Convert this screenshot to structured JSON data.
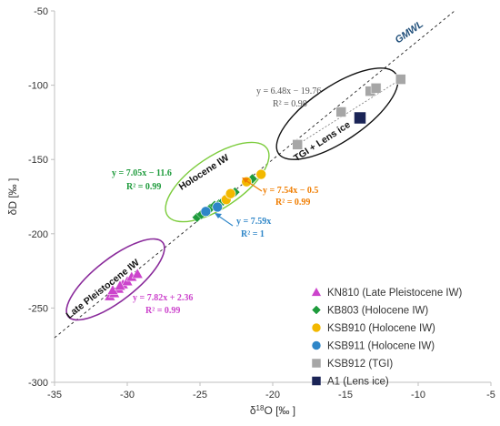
{
  "chart_data": {
    "type": "scatter",
    "xlabel": "δ18O [‰ ]",
    "ylabel": "δD [‰ ]",
    "xlim": [
      -35,
      -5
    ],
    "ylim": [
      -300,
      -50
    ],
    "xticks": [
      -35,
      -30,
      -25,
      -20,
      -15,
      -10,
      -5
    ],
    "yticks": [
      -300,
      -250,
      -200,
      -150,
      -100,
      -50
    ],
    "grid": false,
    "legend_position": "bottom-right",
    "series": [
      {
        "name": "KN810 (Late Pleistocene IW)",
        "marker": "triangle",
        "color": "#cc44cc",
        "x": [
          -31.2,
          -30.9,
          -30.6,
          -30.3,
          -30.0,
          -29.7,
          -29.3,
          -31.0,
          -30.5
        ],
        "y": [
          -242,
          -240,
          -237,
          -234,
          -232,
          -229,
          -227,
          -238,
          -235
        ]
      },
      {
        "name": "KB803 (Holocene IW)",
        "marker": "diamond",
        "color": "#1e9b3c",
        "x": [
          -25.2,
          -24.9,
          -24.6,
          -24.3,
          -24.0,
          -23.7,
          -23.4,
          -23.1,
          -22.6,
          -21.4
        ],
        "y": [
          -189,
          -187,
          -185,
          -183,
          -181,
          -180,
          -178,
          -175,
          -172,
          -163
        ]
      },
      {
        "name": "KSB910 (Holocene IW)",
        "marker": "circle",
        "color": "#f2b800",
        "x": [
          -23.2,
          -22.9,
          -21.8,
          -20.8
        ],
        "y": [
          -177,
          -173,
          -165,
          -160
        ]
      },
      {
        "name": "KSB911 (Holocene IW)",
        "marker": "circle",
        "color": "#2e86c8",
        "x": [
          -24.6,
          -23.8
        ],
        "y": [
          -185,
          -182
        ]
      },
      {
        "name": "KSB912 (TGI)",
        "marker": "square",
        "color": "#a6a6a6",
        "x": [
          -18.3,
          -15.3,
          -13.3,
          -12.9,
          -11.2
        ],
        "y": [
          -140,
          -118,
          -104,
          -102,
          -96
        ]
      },
      {
        "name": "A1 (Lens ice)",
        "marker": "square",
        "color": "#1a2456",
        "x": [
          -14.0
        ],
        "y": [
          -122
        ]
      }
    ],
    "reference_line": {
      "name": "GMWL",
      "slope": 8,
      "intercept": 10
    },
    "annotations": {
      "eq_gray": [
        "y = 6.48x − 19.76",
        "R² = 0.98"
      ],
      "eq_green": [
        "y = 7.05x − 11.6",
        "R² = 0.99"
      ],
      "eq_orange": [
        "y = 7.54x − 0.5",
        "R² = 0.99"
      ],
      "eq_blue": [
        "y = 7.59x",
        "R² = 1"
      ],
      "eq_magenta": [
        "y = 7.82x + 2.36",
        "R² = 0.99"
      ],
      "group_tgi": "TGI + Lens ice",
      "group_holocene": "Holocene IW",
      "group_late": "Late Pleistocene IW",
      "gmwl": "GMWL"
    },
    "colors": {
      "ellipse_tgi": "#111111",
      "ellipse_holocene": "#7ccc3c",
      "ellipse_late": "#8a2b9b",
      "eq_green": "#1e9b3c",
      "eq_orange": "#f07d00",
      "eq_blue": "#2e86c8",
      "eq_magenta": "#cc44cc",
      "eq_gray": "#555555",
      "gmwl": "#1f4e79"
    }
  }
}
